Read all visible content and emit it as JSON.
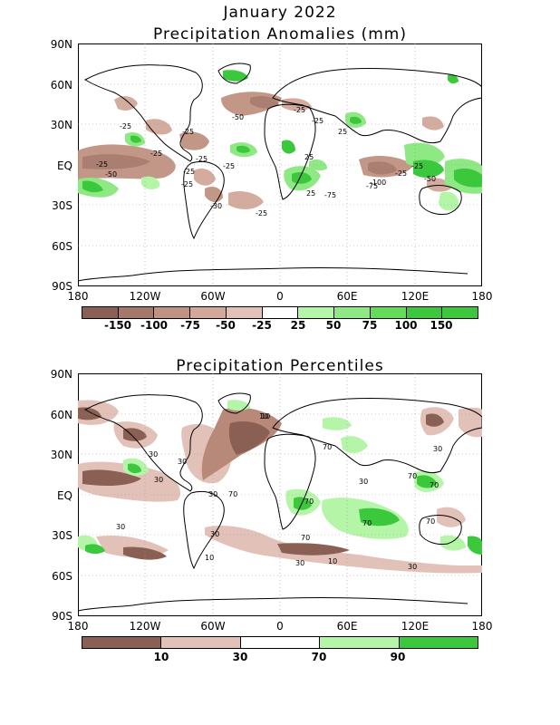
{
  "main_title": "January 2022",
  "panel1": {
    "title": "Precipitation Anomalies (mm)",
    "y_ticks": [
      "90N",
      "60N",
      "30N",
      "EQ",
      "30S",
      "60S",
      "90S"
    ],
    "x_ticks": [
      "180",
      "120W",
      "60W",
      "0",
      "60E",
      "120E",
      "180"
    ],
    "colorbar_labels": [
      "-150",
      "-100",
      "-75",
      "-50",
      "-25",
      "25",
      "50",
      "75",
      "100",
      "150"
    ],
    "colorbar_colors": [
      "#8b6054",
      "#a6786a",
      "#c09282",
      "#d2a89a",
      "#e2c2b8",
      "#ffffff",
      "#b4f5a8",
      "#8ee884",
      "#64dc5a",
      "#3cc83c"
    ],
    "contour_labels": [
      "-25",
      "-50",
      "-25",
      "-25",
      "-25",
      "-25",
      "-50",
      "-25",
      "-25",
      "-25",
      "-30",
      "-25",
      "-25",
      "-25",
      "25",
      "25",
      "-75",
      "-100",
      "-25",
      "-25",
      "-50",
      "25",
      "-75"
    ]
  },
  "panel2": {
    "title": "Precipitation Percentiles",
    "y_ticks": [
      "90N",
      "60N",
      "30N",
      "EQ",
      "30S",
      "60S",
      "90S"
    ],
    "x_ticks": [
      "180",
      "120W",
      "60W",
      "0",
      "60E",
      "120E",
      "180"
    ],
    "colorbar_labels": [
      "10",
      "30",
      "70",
      "90"
    ],
    "colorbar_colors": [
      "#8b6054",
      "#e2c2b8",
      "#ffffff",
      "#b4f5a8",
      "#3cc83c"
    ],
    "contour_labels": [
      "10",
      "30",
      "30",
      "30",
      "70",
      "30",
      "70",
      "30",
      "10",
      "30",
      "70",
      "70",
      "30",
      "30",
      "70",
      "30",
      "70",
      "10",
      "30",
      "70",
      "70",
      "10"
    ]
  },
  "colors": {
    "dry_dark": "#8b6054",
    "dry_mid": "#b88878",
    "dry_light": "#d8b4a6",
    "wet_light": "#b4f5a8",
    "wet_mid": "#78e070",
    "wet_dark": "#3cc83c",
    "land_outline": "#000000",
    "grid": "#999999"
  }
}
